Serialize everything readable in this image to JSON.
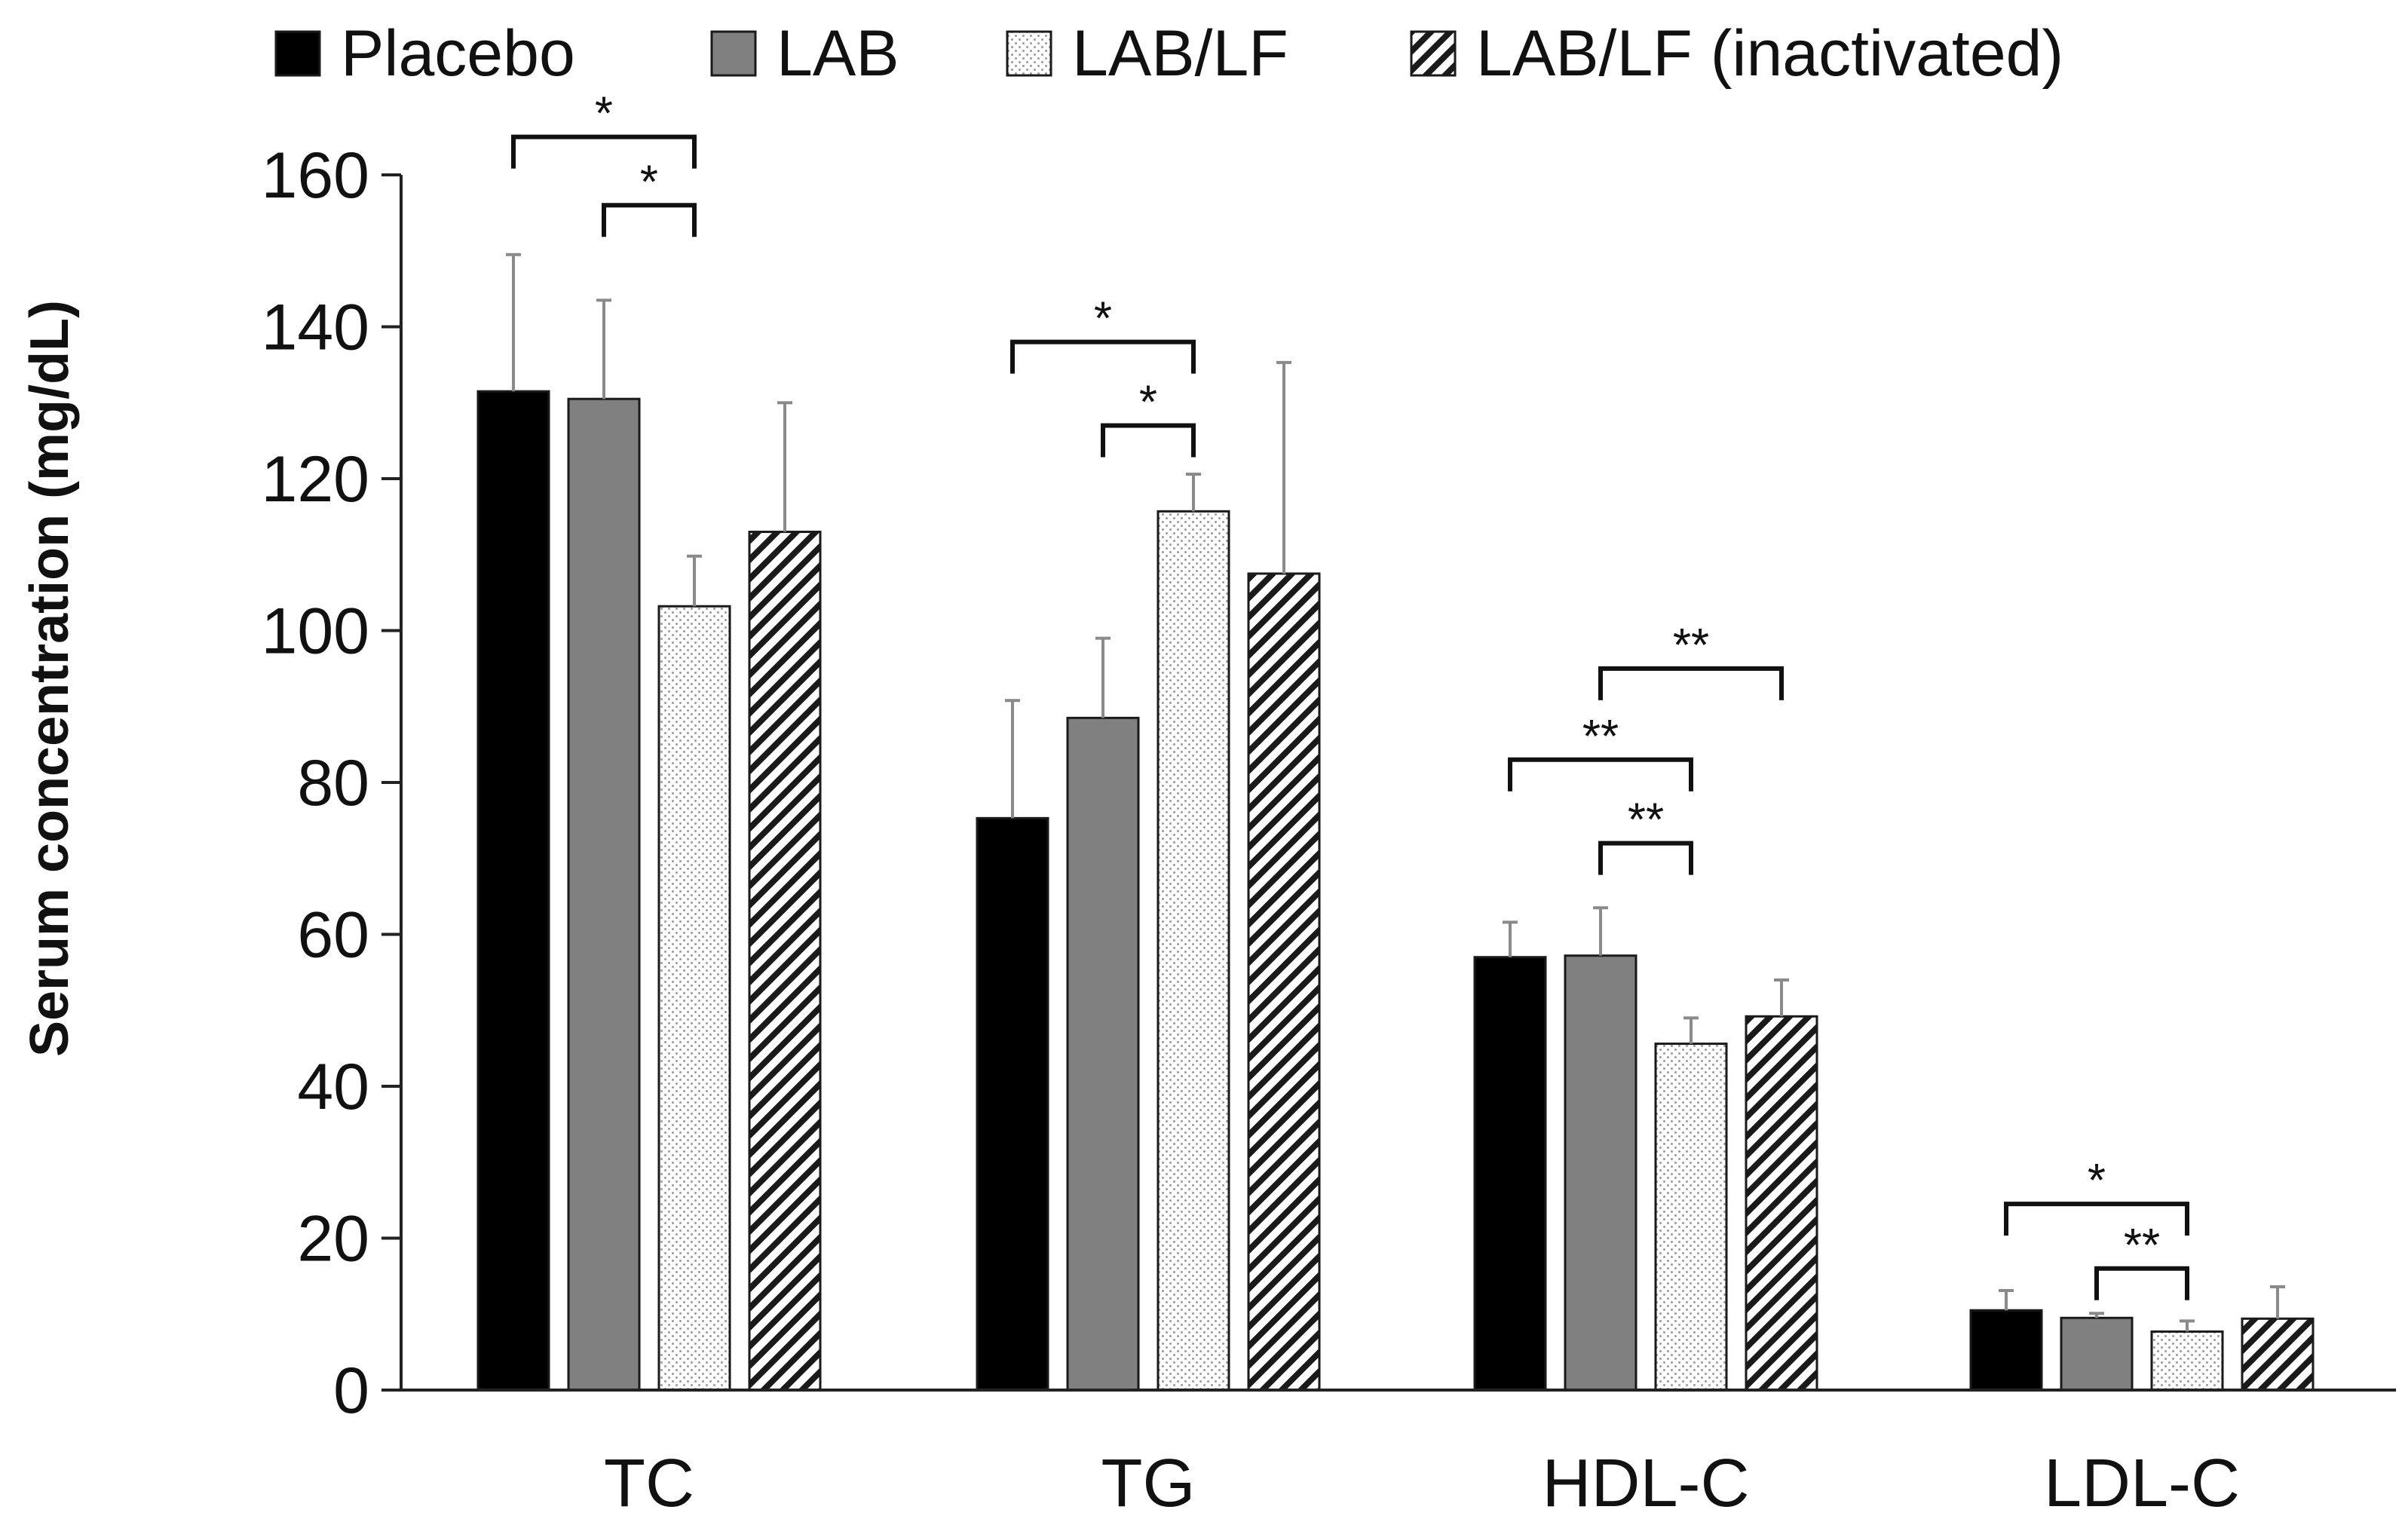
{
  "chart_data": {
    "type": "bar",
    "title": "",
    "xlabel": "",
    "ylabel": "Serum concentration (mg/dL)",
    "ylim": [
      0,
      160
    ],
    "yticks": [
      0,
      20,
      40,
      60,
      80,
      100,
      120,
      140,
      160
    ],
    "grid": false,
    "legend_position": "top",
    "categories": [
      "TC",
      "TG",
      "HDL-C",
      "LDL-C"
    ],
    "series": [
      {
        "name": "Placebo",
        "pattern": "solid-black",
        "values": [
          131.5,
          75.3,
          57.0,
          10.5
        ],
        "errors": [
          18.0,
          15.5,
          4.6,
          2.6
        ]
      },
      {
        "name": "LAB",
        "pattern": "solid-gray",
        "values": [
          130.5,
          88.5,
          57.2,
          9.5
        ],
        "errors": [
          13.0,
          10.5,
          6.3,
          0.6
        ]
      },
      {
        "name": "LAB/LF",
        "pattern": "dotted",
        "values": [
          103.2,
          115.7,
          45.6,
          7.7
        ],
        "errors": [
          6.6,
          4.9,
          3.4,
          1.4
        ]
      },
      {
        "name": "LAB/LF (inactivated)",
        "pattern": "hatched",
        "values": [
          113.0,
          107.5,
          49.2,
          9.4
        ],
        "errors": [
          17.0,
          27.8,
          4.8,
          4.2
        ]
      }
    ],
    "significance": [
      {
        "category": "TC",
        "from": "Placebo",
        "to": "LAB/LF",
        "label": "*",
        "at": 165
      },
      {
        "category": "TC",
        "from": "LAB",
        "to": "LAB/LF",
        "label": "*",
        "at": 156
      },
      {
        "category": "TG",
        "from": "Placebo",
        "to": "LAB/LF",
        "label": "*",
        "at": 138
      },
      {
        "category": "TG",
        "from": "LAB",
        "to": "LAB/LF",
        "label": "*",
        "at": 127
      },
      {
        "category": "HDL-C",
        "from": "LAB",
        "to": "LAB/LF (inactivated)",
        "label": "**",
        "at": 95
      },
      {
        "category": "HDL-C",
        "from": "Placebo",
        "to": "LAB/LF",
        "label": "**",
        "at": 83
      },
      {
        "category": "HDL-C",
        "from": "LAB",
        "to": "LAB/LF",
        "label": "**",
        "at": 72
      },
      {
        "category": "LDL-C",
        "from": "Placebo",
        "to": "LAB/LF",
        "label": "*",
        "at": 24.5
      },
      {
        "category": "LDL-C",
        "from": "LAB",
        "to": "LAB/LF",
        "label": "**",
        "at": 16
      }
    ]
  },
  "colors": {
    "placebo": "#000000",
    "lab": "#808080",
    "lab_lf_base": "#ffffff",
    "lab_lf_dots": "#9a9a9a",
    "inactivated_base": "#ffffff",
    "inactivated_hatch": "#1a1a1a",
    "error_bar": "#8a8a8a"
  }
}
